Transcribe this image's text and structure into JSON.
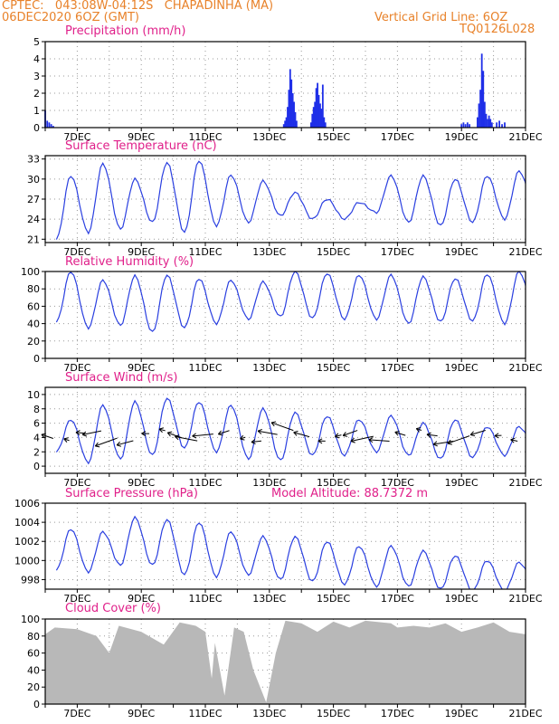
{
  "header": {
    "line1_left": "CPTEC:   043:08W-04:12S   CHAPADINHA (MA)",
    "line2_left": "06DEC2020 6OZ (GMT)",
    "line1_right": "Vertical Grid Line: 6OZ",
    "line2_right": "TQ0126L028"
  },
  "colors": {
    "header": "#e8822a",
    "panel_title": "#e0208a",
    "line": "#2a3fe0",
    "bars": "#1f2fe8",
    "cloud": "#b8b8b8",
    "grid": "#999999"
  },
  "x_ticks": [
    "7DEC",
    "9DEC",
    "11DEC",
    "13DEC",
    "15DEC",
    "17DEC",
    "19DEC",
    "21DEC"
  ],
  "chart_data": [
    {
      "type": "bar",
      "title": "Precipitation (mm/h)",
      "x_range_days": [
        6.0,
        21.0
      ],
      "ylim": [
        0,
        5
      ],
      "yticks": [
        0,
        1,
        2,
        3,
        4,
        5
      ],
      "events": [
        {
          "start": 6.0,
          "end": 6.25,
          "values": [
            1.0,
            0.4,
            0.3,
            0.2,
            0.1
          ]
        },
        {
          "start": 13.45,
          "end": 13.85,
          "values": [
            0.2,
            0.4,
            0.6,
            1.2,
            2.2,
            3.4,
            2.8,
            2.0,
            1.5,
            0.9,
            0.4
          ]
        },
        {
          "start": 14.3,
          "end": 14.75,
          "values": [
            0.3,
            0.8,
            1.2,
            1.5,
            2.3,
            2.6,
            1.9,
            1.4,
            1.1,
            2.5,
            0.6,
            0.3
          ]
        },
        {
          "start": 19.0,
          "end": 19.25,
          "values": [
            0.2,
            0.3,
            0.2,
            0.3,
            0.2
          ]
        },
        {
          "start": 19.5,
          "end": 19.95,
          "values": [
            0.6,
            1.4,
            2.2,
            4.3,
            3.3,
            1.5,
            0.8,
            0.5,
            0.7,
            0.5,
            0.3
          ]
        },
        {
          "start": 20.1,
          "end": 20.35,
          "values": [
            0.3,
            0.4,
            0.2,
            0.3
          ]
        }
      ]
    },
    {
      "type": "line",
      "title": "Surface Temperature (nC)",
      "x_range_days": [
        6.0,
        21.0
      ],
      "ylim": [
        20.5,
        33.5
      ],
      "yticks": [
        21,
        24,
        27,
        30,
        33
      ],
      "daily_max": [
        30.5,
        32.3,
        30.0,
        32.5,
        32.8,
        30.6,
        29.7,
        28.0,
        27.0,
        26.5,
        30.5,
        30.5,
        30.0,
        30.5,
        31.2
      ],
      "daily_min": [
        21.0,
        22.0,
        22.5,
        23.5,
        22.0,
        23.0,
        23.5,
        24.5,
        24.0,
        24.0,
        25.0,
        23.5,
        23.0,
        23.5,
        24.0,
        24.5
      ]
    },
    {
      "type": "line",
      "title": "Relative Humidity (%)",
      "x_range_days": [
        6.0,
        21.0
      ],
      "ylim": [
        0,
        100
      ],
      "yticks": [
        0,
        20,
        40,
        60,
        80,
        100
      ],
      "daily_max": [
        100,
        90,
        95,
        96,
        92,
        90,
        88,
        100,
        98,
        96,
        96,
        94,
        92,
        97,
        100
      ],
      "daily_min": [
        42,
        35,
        38,
        30,
        35,
        40,
        45,
        48,
        46,
        45,
        45,
        40,
        42,
        43,
        40,
        42
      ]
    },
    {
      "type": "line",
      "title": "Surface Wind (m/s)",
      "x_range_days": [
        6.0,
        21.0
      ],
      "ylim": [
        -1,
        11
      ],
      "yticks": [
        0,
        2,
        4,
        6,
        8,
        10
      ],
      "daily_max": [
        6.5,
        8.5,
        9.0,
        9.5,
        9.0,
        8.5,
        8.0,
        7.5,
        7.0,
        6.5,
        7.0,
        6.0,
        6.5,
        5.5,
        5.5
      ],
      "daily_min": [
        2.0,
        0.5,
        1.0,
        1.5,
        2.5,
        2.0,
        1.0,
        0.8,
        1.5,
        1.5,
        2.0,
        1.5,
        1.0,
        1.2,
        1.5,
        2.0
      ],
      "arrows_every_days": 0.5
    },
    {
      "type": "line",
      "title": "Surface Pressure (hPa)",
      "subtitle": "Model Altitude: 88.7372 m",
      "x_range_days": [
        6.0,
        21.0
      ],
      "ylim": [
        997.0,
        1006.0
      ],
      "yticks": [
        998,
        1000,
        1002,
        1004,
        1006
      ],
      "daily_max": [
        1003.3,
        1003.0,
        1004.5,
        1004.3,
        1004.0,
        1003.0,
        1002.5,
        1002.5,
        1002.0,
        1001.5,
        1001.5,
        1001.0,
        1000.5,
        1000.0,
        999.8
      ],
      "daily_min": [
        999.0,
        998.8,
        999.5,
        999.5,
        998.5,
        998.3,
        998.5,
        998.0,
        997.8,
        997.5,
        997.3,
        997.3,
        997.0,
        996.8,
        996.8,
        997.0
      ]
    },
    {
      "type": "area",
      "title": "Cloud Cover (%)",
      "x_range_days": [
        6.0,
        21.0
      ],
      "ylim": [
        0,
        100
      ],
      "yticks": [
        0,
        20,
        40,
        60,
        80,
        100
      ],
      "points": [
        [
          6.0,
          82
        ],
        [
          6.3,
          90
        ],
        [
          7.0,
          88
        ],
        [
          7.6,
          80
        ],
        [
          8.0,
          60
        ],
        [
          8.3,
          92
        ],
        [
          9.0,
          85
        ],
        [
          9.7,
          70
        ],
        [
          10.2,
          96
        ],
        [
          10.7,
          92
        ],
        [
          11.0,
          85
        ],
        [
          11.2,
          30
        ],
        [
          11.3,
          72
        ],
        [
          11.6,
          10
        ],
        [
          11.9,
          90
        ],
        [
          12.2,
          85
        ],
        [
          12.5,
          40
        ],
        [
          12.9,
          2
        ],
        [
          13.2,
          60
        ],
        [
          13.5,
          98
        ],
        [
          14.0,
          95
        ],
        [
          14.5,
          85
        ],
        [
          15.0,
          97
        ],
        [
          15.5,
          90
        ],
        [
          16.0,
          98
        ],
        [
          16.8,
          95
        ],
        [
          17.0,
          90
        ],
        [
          17.5,
          92
        ],
        [
          18.0,
          90
        ],
        [
          18.5,
          95
        ],
        [
          19.0,
          85
        ],
        [
          19.5,
          90
        ],
        [
          20.0,
          96
        ],
        [
          20.5,
          85
        ],
        [
          21.0,
          82
        ]
      ]
    }
  ]
}
